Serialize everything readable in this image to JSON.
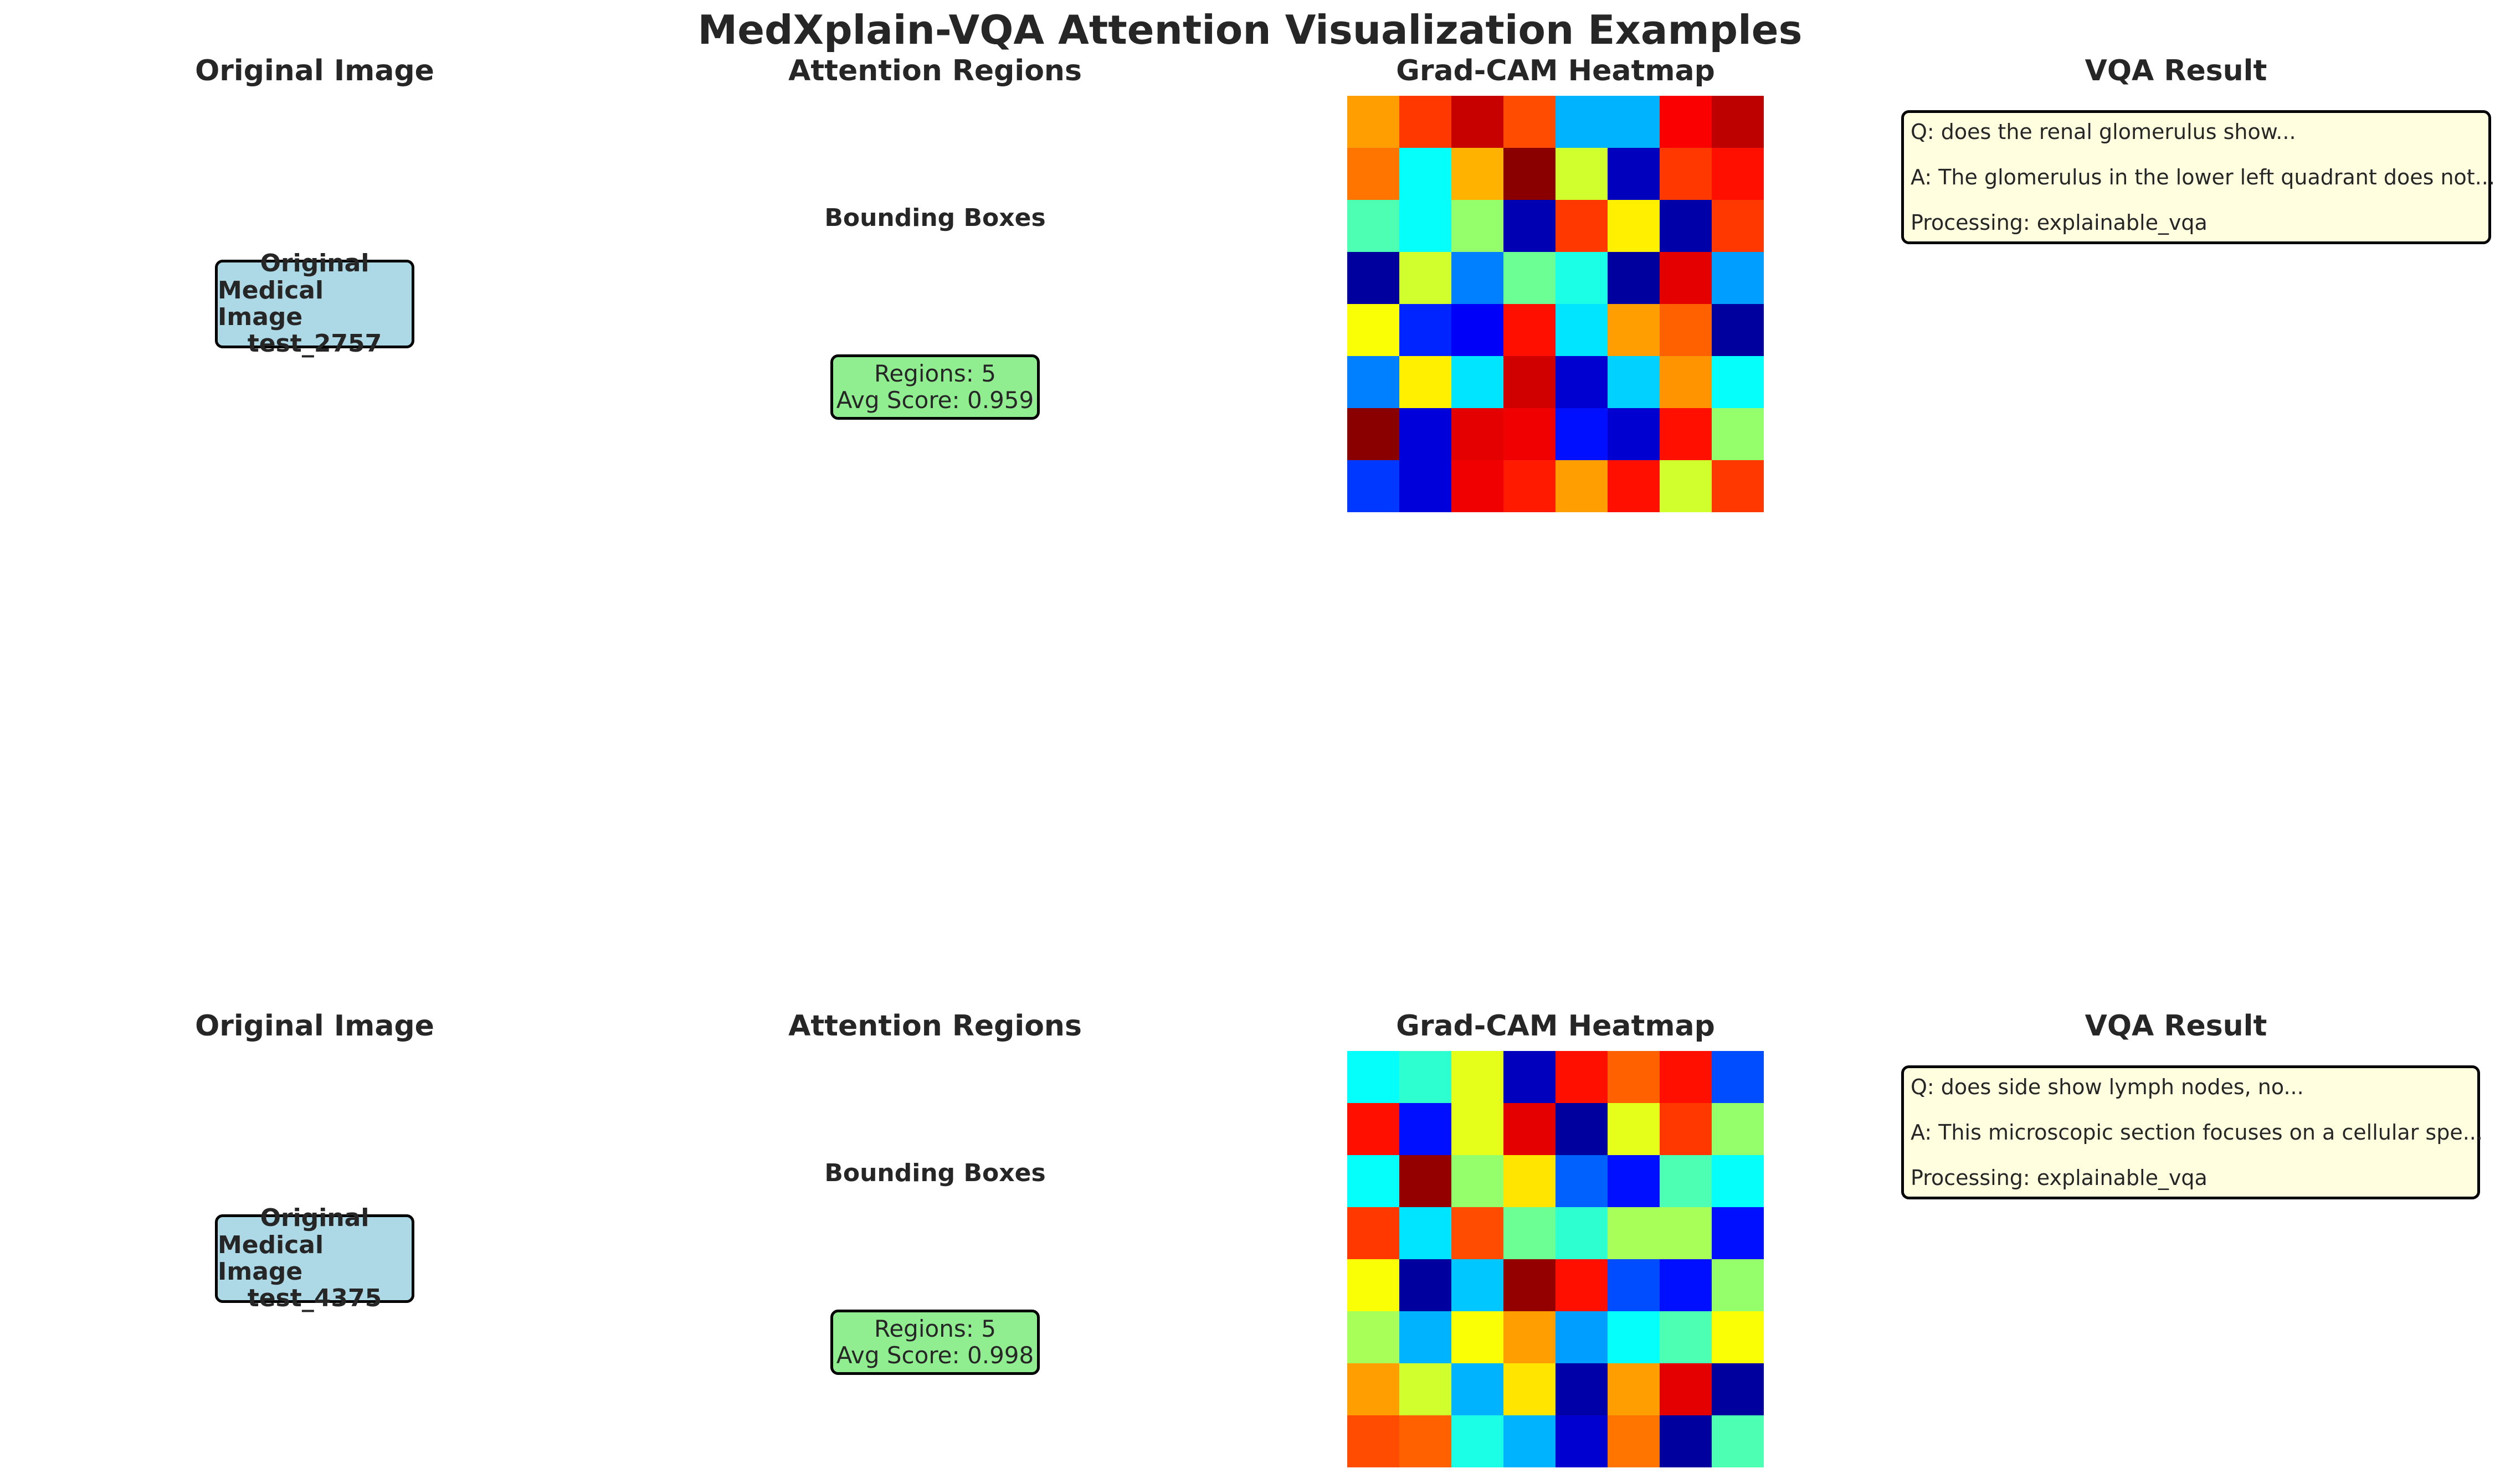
{
  "title": "MedXplain-VQA Attention Visualization Examples",
  "colors": {
    "original_box": "#add8e6",
    "region_box": "#90ee90",
    "vqa_box": "#ffffe0"
  },
  "rows": [
    {
      "original_title": "Original Image",
      "original_lines": [
        "Original",
        "Medical Image",
        "test_2757"
      ],
      "attention_title": "Attention Regions",
      "bbox_label": "Bounding Boxes",
      "regions_text": "Regions: 5",
      "score_text": "Avg Score: 0.959",
      "heatmap_title": "Grad-CAM Heatmap",
      "vqa_title": "VQA Result",
      "question": "Q: does the renal glomerulus show...",
      "answer": "A: The glomerulus in the lower left quadrant does not...",
      "processing": "Processing: explainable_vqa"
    },
    {
      "original_title": "Original Image",
      "original_lines": [
        "Original",
        "Medical Image",
        "test_4375"
      ],
      "attention_title": "Attention Regions",
      "bbox_label": "Bounding Boxes",
      "regions_text": "Regions: 5",
      "score_text": "Avg Score: 0.998",
      "heatmap_title": "Grad-CAM Heatmap",
      "vqa_title": "VQA Result",
      "question": "Q: does side show lymph nodes, no...",
      "answer": "A: This microscopic section focuses on a cellular spe...",
      "processing": "Processing: explainable_vqa"
    }
  ],
  "chart_data": [
    {
      "type": "heatmap",
      "title": "Grad-CAM Heatmap",
      "colormap": "jet",
      "values": [
        [
          0.72,
          0.82,
          0.93,
          0.8,
          0.3,
          0.3,
          0.88,
          0.94
        ],
        [
          0.76,
          0.38,
          0.7,
          0.99,
          0.58,
          0.06,
          0.82,
          0.86
        ],
        [
          0.45,
          0.38,
          0.52,
          0.05,
          0.82,
          0.64,
          0.04,
          0.82
        ],
        [
          0.03,
          0.58,
          0.25,
          0.48,
          0.4,
          0.03,
          0.9,
          0.28
        ],
        [
          0.62,
          0.16,
          0.12,
          0.86,
          0.35,
          0.72,
          0.78,
          0.03
        ],
        [
          0.25,
          0.64,
          0.35,
          0.92,
          0.08,
          0.33,
          0.73,
          0.38
        ],
        [
          0.99,
          0.09,
          0.9,
          0.89,
          0.14,
          0.08,
          0.86,
          0.52
        ],
        [
          0.18,
          0.09,
          0.89,
          0.85,
          0.72,
          0.86,
          0.58,
          0.82
        ]
      ]
    },
    {
      "type": "heatmap",
      "title": "Grad-CAM Heatmap",
      "colormap": "jet",
      "values": [
        [
          0.38,
          0.42,
          0.6,
          0.06,
          0.86,
          0.78,
          0.86,
          0.2
        ],
        [
          0.86,
          0.14,
          0.6,
          0.9,
          0.03,
          0.6,
          0.82,
          0.52
        ],
        [
          0.38,
          0.98,
          0.52,
          0.65,
          0.22,
          0.14,
          0.45,
          0.38
        ],
        [
          0.82,
          0.35,
          0.8,
          0.48,
          0.42,
          0.54,
          0.54,
          0.14
        ],
        [
          0.62,
          0.03,
          0.32,
          0.98,
          0.86,
          0.2,
          0.14,
          0.52
        ],
        [
          0.54,
          0.3,
          0.62,
          0.72,
          0.28,
          0.38,
          0.45,
          0.62
        ],
        [
          0.72,
          0.58,
          0.3,
          0.65,
          0.04,
          0.72,
          0.9,
          0.03
        ],
        [
          0.8,
          0.78,
          0.4,
          0.3,
          0.08,
          0.76,
          0.03,
          0.45
        ]
      ]
    }
  ]
}
